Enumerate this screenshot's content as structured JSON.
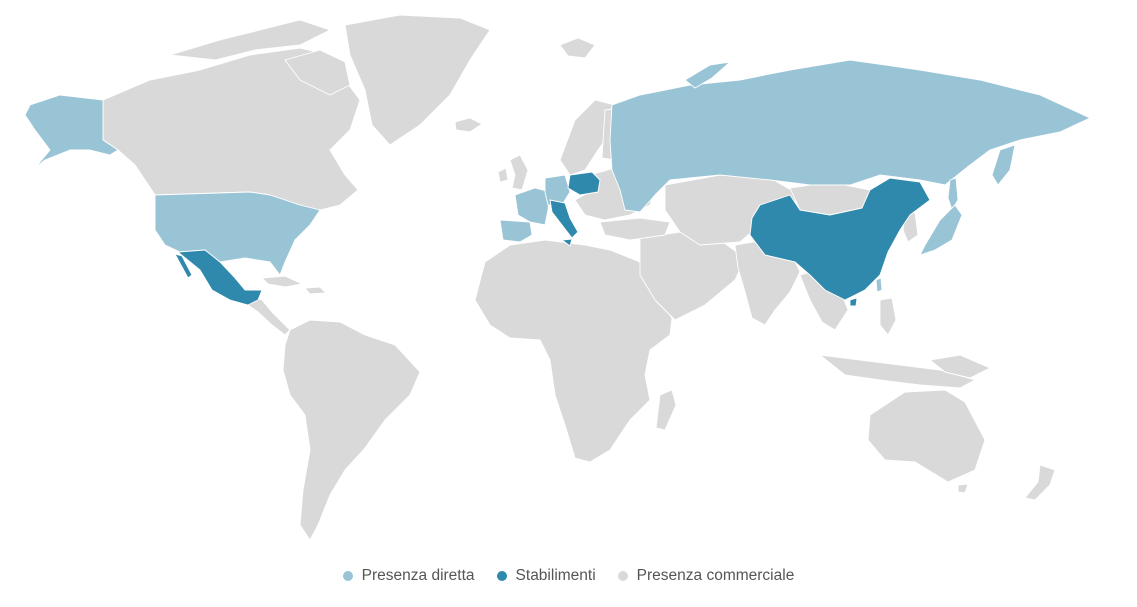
{
  "colors": {
    "direct": "#98c4d6",
    "plants": "#2e89ac",
    "commercial": "#d9d9d9"
  },
  "legend": [
    {
      "key": "direct",
      "label": "Presenza diretta",
      "color": "#98c4d6"
    },
    {
      "key": "plants",
      "label": "Stabilimenti",
      "color": "#2e89ac"
    },
    {
      "key": "commercial",
      "label": "Presenza commerciale",
      "color": "#d9d9d9"
    }
  ],
  "regions": {
    "direct": [
      "Alaska",
      "United States",
      "Russia",
      "France",
      "Spain",
      "Germany",
      "Japan",
      "Taiwan"
    ],
    "plants": [
      "Mexico",
      "Italy",
      "Poland",
      "China"
    ]
  }
}
